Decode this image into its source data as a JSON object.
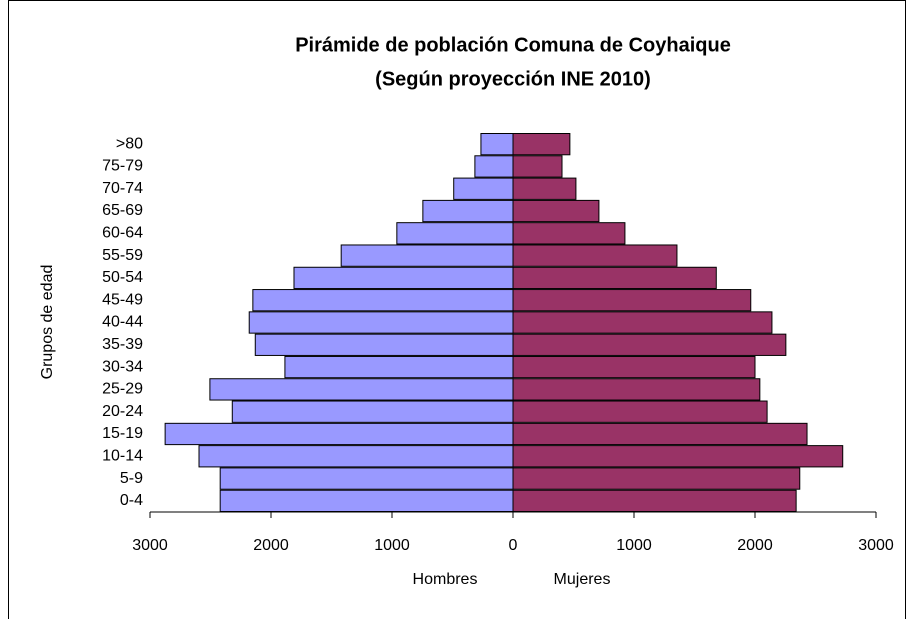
{
  "chart_data": {
    "type": "pyramid",
    "title": "Pirámide de población Comuna de Coyhaique",
    "subtitle": "(Según proyección INE 2010)",
    "y_label": "Grupos de edad",
    "categories": [
      "0-4",
      "5-9",
      "10-14",
      "15-19",
      "20-24",
      "25-29",
      "30-34",
      "35-39",
      "40-44",
      "45-49",
      "50-54",
      "55-59",
      "60-64",
      "65-69",
      "70-74",
      "75-79",
      ">80"
    ],
    "series": [
      {
        "name": "Hombres",
        "color": "#9999ff",
        "values": [
          -2420,
          -2420,
          -2595,
          -2875,
          -2320,
          -2505,
          -1885,
          -2130,
          -2180,
          -2150,
          -1810,
          -1420,
          -960,
          -745,
          -490,
          -315,
          -265
        ]
      },
      {
        "name": "Mujeres",
        "color": "#993366",
        "values": [
          2340,
          2370,
          2725,
          2430,
          2100,
          2040,
          2000,
          2255,
          2140,
          1965,
          1680,
          1355,
          925,
          710,
          520,
          405,
          470
        ]
      }
    ],
    "xlim": [
      -3000,
      3000
    ],
    "xticks": [
      {
        "value": -3000,
        "label": "3000"
      },
      {
        "value": -2000,
        "label": "2000"
      },
      {
        "value": -1000,
        "label": "1000"
      },
      0,
      1000,
      2000,
      3000
    ]
  }
}
